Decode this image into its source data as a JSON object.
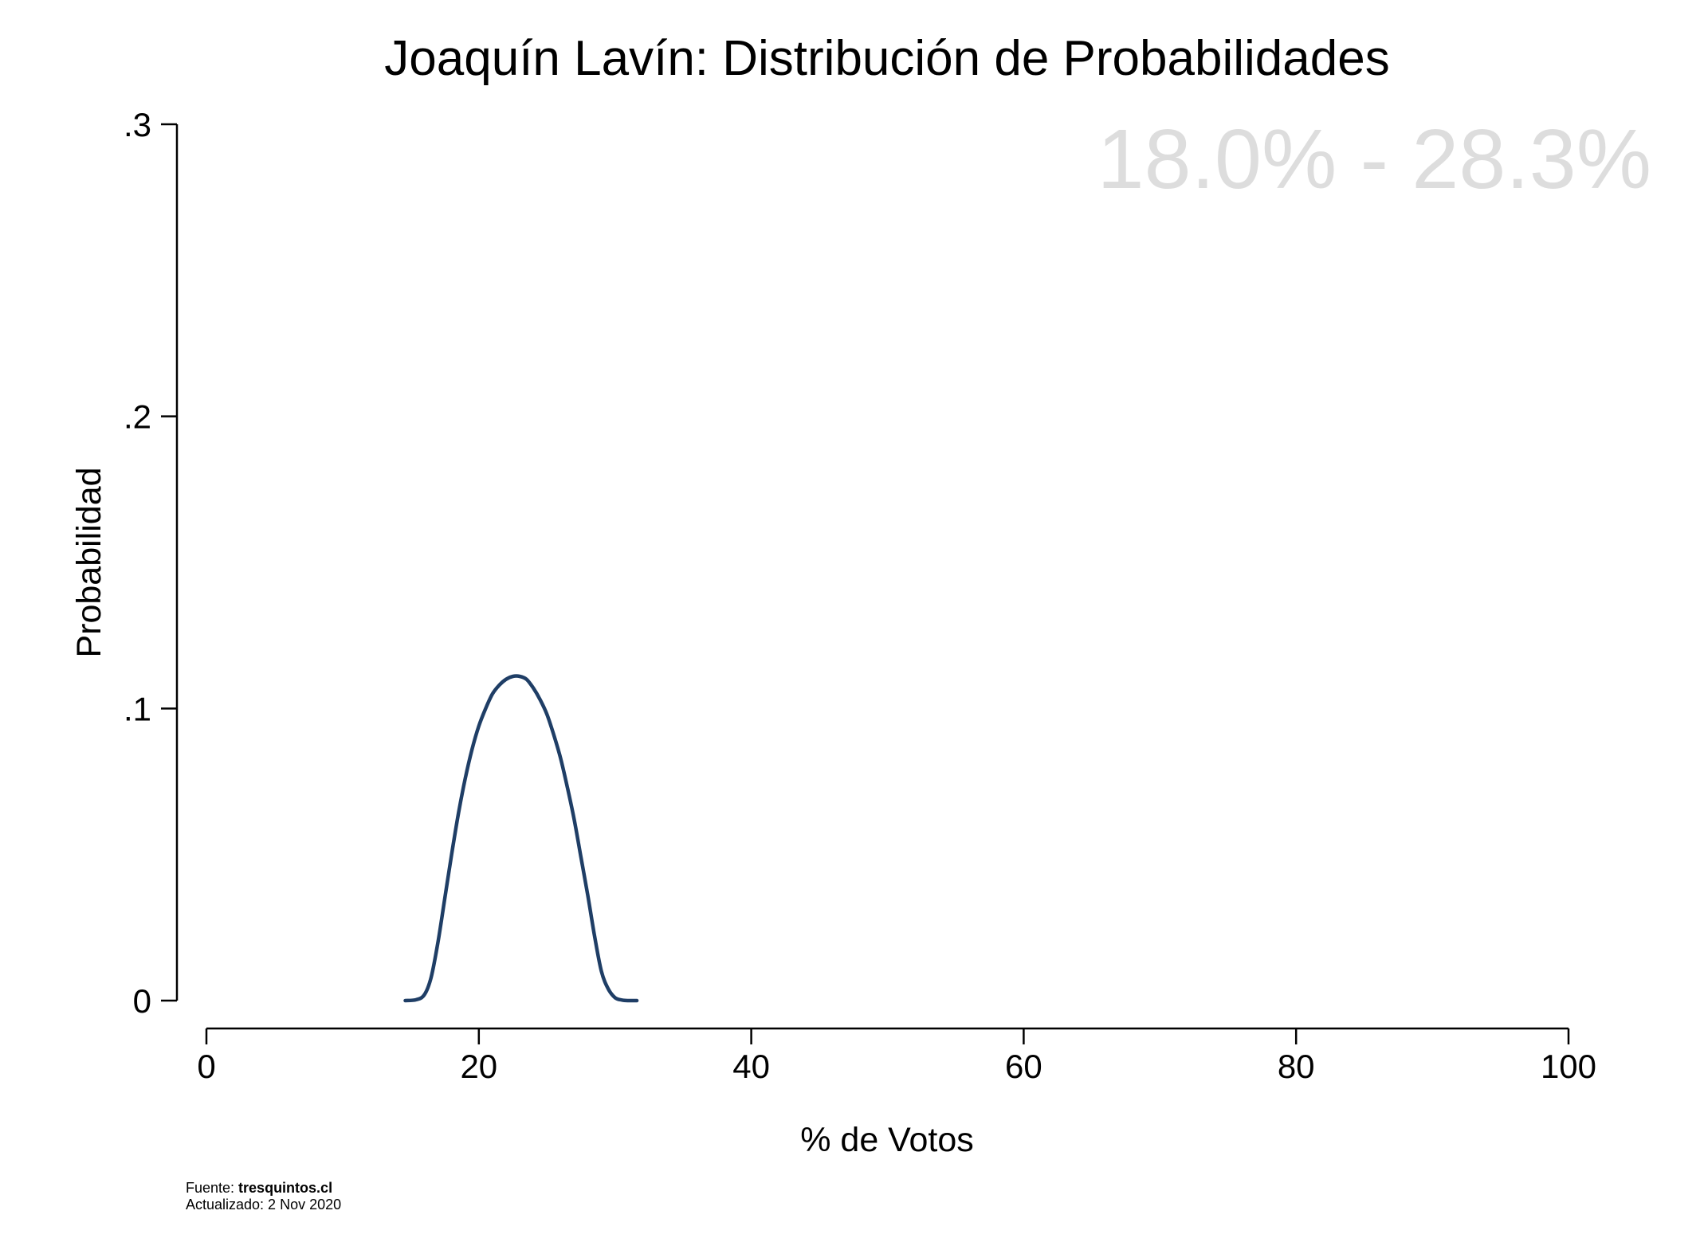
{
  "chart_data": {
    "type": "line",
    "title": "Joaquín Lavín: Distribución de Probabilidades",
    "xlabel": "% de Votos",
    "ylabel": "Probabilidad",
    "xlim": [
      0,
      100
    ],
    "ylim": [
      0,
      0.3
    ],
    "x_ticks": [
      0,
      20,
      40,
      60,
      80,
      100
    ],
    "x_tick_labels": [
      "0",
      "20",
      "40",
      "60",
      "80",
      "100"
    ],
    "y_ticks": [
      0,
      0.1,
      0.2,
      0.3
    ],
    "y_tick_labels": [
      "0",
      ".1",
      ".2",
      ".3"
    ],
    "annotation": "18.0% - 28.3%",
    "grid": false,
    "legend": "none",
    "series": [
      {
        "color": "#1f3e66",
        "x": [
          14.6,
          15.4,
          16.0,
          16.5,
          17.0,
          17.5,
          18.0,
          18.5,
          19.0,
          19.5,
          20.0,
          20.5,
          21.0,
          21.5,
          22.0,
          22.5,
          23.0,
          23.5,
          24.0,
          24.5,
          25.0,
          25.5,
          26.0,
          26.5,
          27.0,
          27.5,
          28.0,
          28.5,
          29.0,
          29.5,
          30.0,
          30.5,
          31.0,
          31.6
        ],
        "y": [
          0.0,
          0.0003,
          0.002,
          0.008,
          0.02,
          0.035,
          0.05,
          0.064,
          0.076,
          0.086,
          0.094,
          0.1,
          0.105,
          0.108,
          0.11,
          0.111,
          0.111,
          0.11,
          0.107,
          0.103,
          0.098,
          0.091,
          0.083,
          0.073,
          0.062,
          0.049,
          0.036,
          0.022,
          0.01,
          0.004,
          0.001,
          0.0002,
          0.0,
          0.0
        ]
      }
    ]
  },
  "footer": {
    "source_label": "Fuente: ",
    "source_value": "tresquintos.cl",
    "updated": "Actualizado: 2 Nov 2020"
  }
}
